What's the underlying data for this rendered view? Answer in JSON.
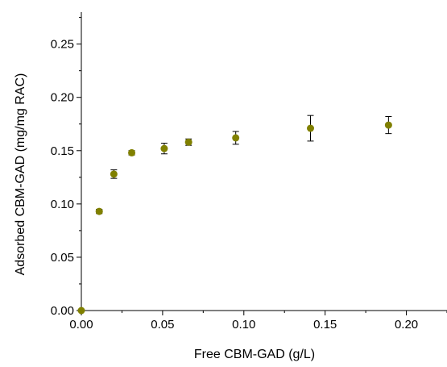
{
  "chart_data": {
    "type": "scatter",
    "xlabel": "Free CBM-GAD (g/L)",
    "ylabel": "Adsorbed CBM-GAD (mg/mg RAC)",
    "xlim": [
      0.0,
      0.225
    ],
    "ylim": [
      0.0,
      0.28
    ],
    "xticks": [
      "0.00",
      "0.05",
      "0.10",
      "0.15",
      "0.20"
    ],
    "yticks": [
      "0.00",
      "0.05",
      "0.10",
      "0.15",
      "0.20",
      "0.25"
    ],
    "grid": false,
    "marker_color": "#808000",
    "series": [
      {
        "points": [
          {
            "x": 0.0,
            "y": 0.0,
            "err": 0.0
          },
          {
            "x": 0.011,
            "y": 0.093,
            "err": 0.002
          },
          {
            "x": 0.02,
            "y": 0.128,
            "err": 0.004
          },
          {
            "x": 0.031,
            "y": 0.148,
            "err": 0.002
          },
          {
            "x": 0.051,
            "y": 0.152,
            "err": 0.005
          },
          {
            "x": 0.066,
            "y": 0.158,
            "err": 0.003
          },
          {
            "x": 0.095,
            "y": 0.162,
            "err": 0.006
          },
          {
            "x": 0.141,
            "y": 0.171,
            "err": 0.012
          },
          {
            "x": 0.189,
            "y": 0.174,
            "err": 0.008
          }
        ]
      }
    ]
  }
}
